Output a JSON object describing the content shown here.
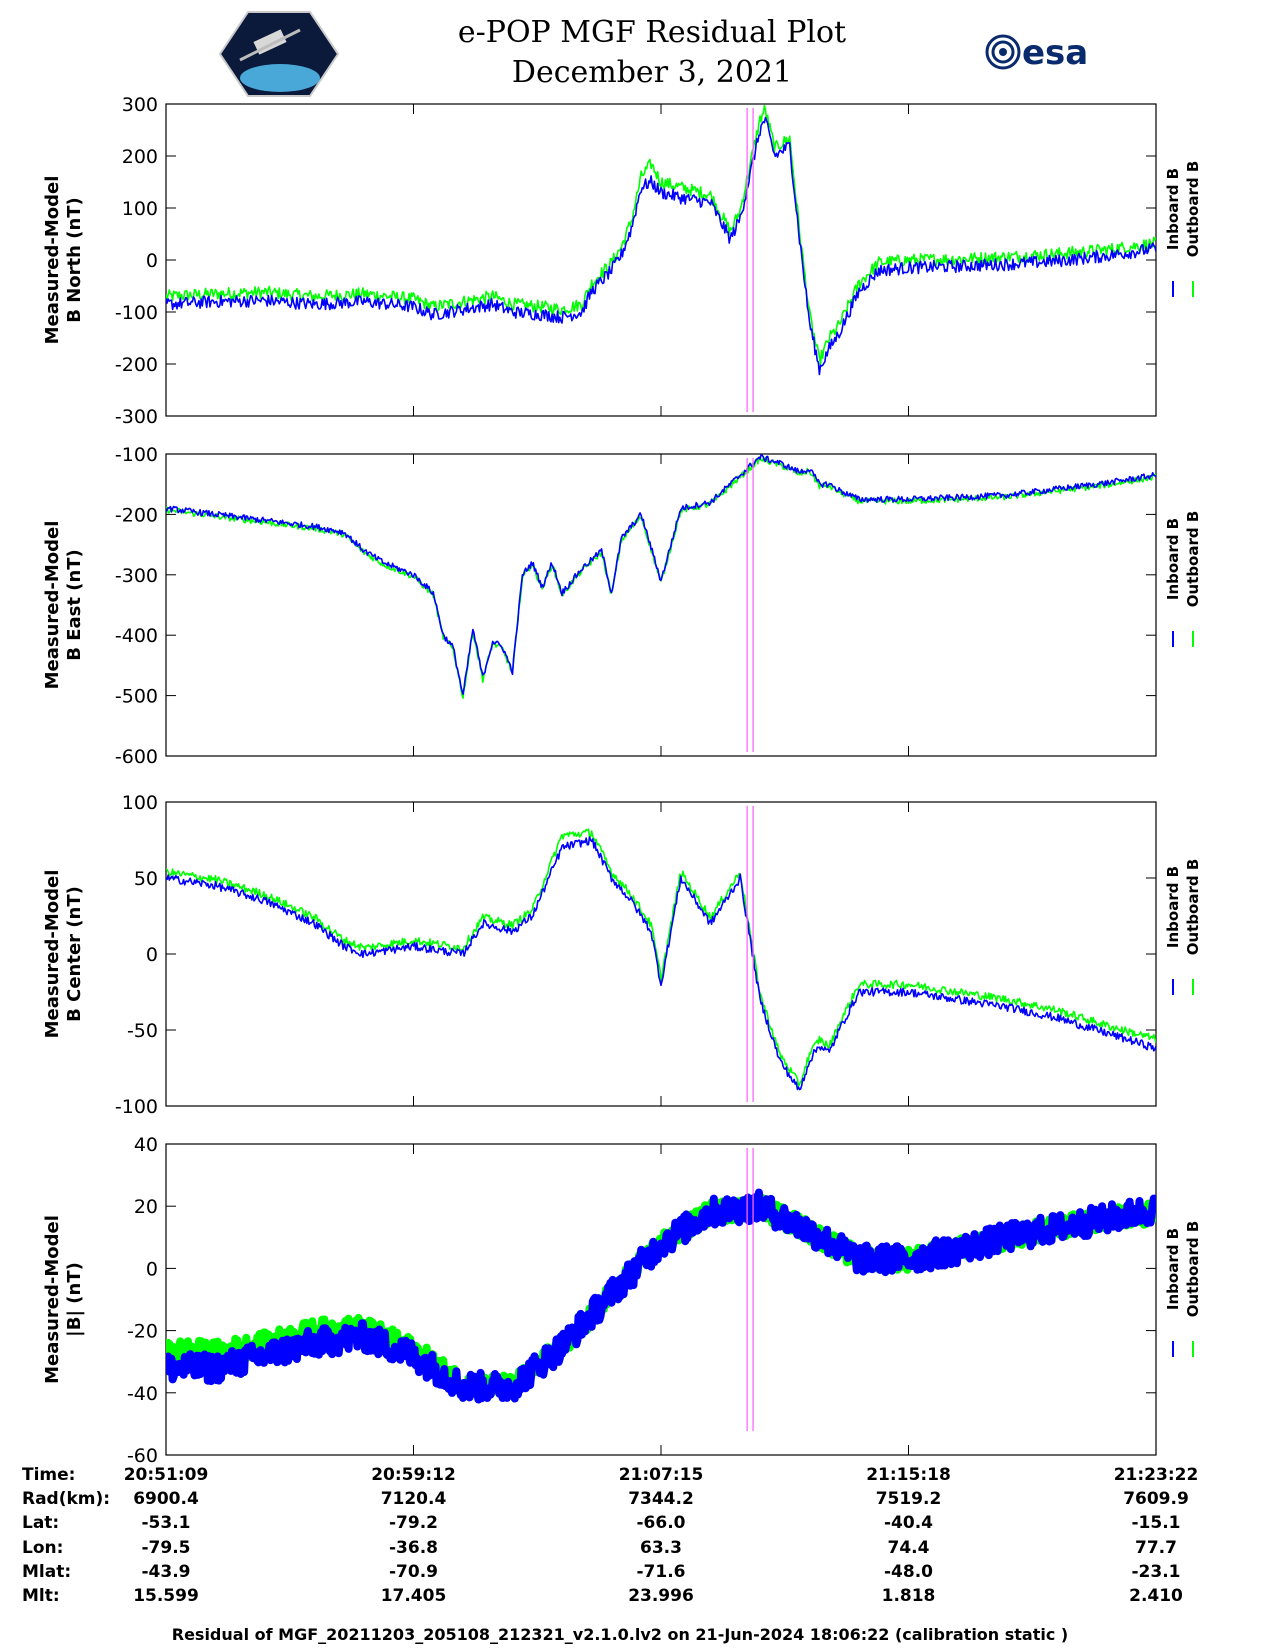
{
  "header": {
    "title_line1": "e-POP MGF Residual Plot",
    "title_line2": "December 3, 2021",
    "esa_logo_text": "esa"
  },
  "colors": {
    "inboard": "#0000ff",
    "outboard": "#00ff00",
    "marker": "#ff66ff"
  },
  "legend": {
    "inboard_label": "Inboard B",
    "outboard_label": "Outboard B"
  },
  "chart_data": [
    {
      "type": "line",
      "ylabel_line1": "Measured-Model",
      "ylabel_line2": "B North (nT)",
      "ylim": [
        -300,
        300
      ],
      "yticks": [
        "300",
        "200",
        "100",
        "0",
        "-100",
        "-200",
        "-300"
      ],
      "x": [
        0,
        5,
        10,
        15,
        20,
        25,
        27,
        30,
        33,
        35,
        38,
        40,
        42,
        43,
        44,
        45,
        46,
        47,
        48,
        49,
        50,
        52,
        55,
        57,
        58,
        60,
        60.5,
        61.5,
        63,
        64,
        65,
        66,
        67,
        68,
        70,
        72,
        75,
        80,
        85,
        90,
        95,
        100
      ],
      "series": [
        {
          "name": "Inboard B",
          "values": [
            -85,
            -80,
            -78,
            -85,
            -80,
            -90,
            -105,
            -95,
            -85,
            -100,
            -105,
            -110,
            -100,
            -60,
            -40,
            -20,
            10,
            60,
            140,
            150,
            130,
            120,
            110,
            40,
            80,
            250,
            270,
            200,
            220,
            40,
            -120,
            -210,
            -170,
            -140,
            -60,
            -20,
            -15,
            -12,
            -8,
            -2,
            8,
            22
          ]
        },
        {
          "name": "Outboard B",
          "values": [
            -70,
            -65,
            -62,
            -70,
            -65,
            -75,
            -90,
            -80,
            -70,
            -85,
            -90,
            -95,
            -85,
            -45,
            -25,
            -5,
            25,
            75,
            160,
            185,
            150,
            140,
            125,
            55,
            95,
            270,
            290,
            215,
            235,
            55,
            -105,
            -195,
            -150,
            -125,
            -45,
            -5,
            0,
            2,
            6,
            12,
            20,
            32
          ]
        }
      ]
    },
    {
      "type": "line",
      "ylabel_line1": "Measured-Model",
      "ylabel_line2": "B East (nT)",
      "ylim": [
        -600,
        -100
      ],
      "yticks": [
        "-100",
        "-200",
        "-300",
        "-400",
        "-500",
        "-600"
      ],
      "x": [
        0,
        5,
        10,
        15,
        18,
        20,
        22,
        25,
        27,
        28,
        29,
        30,
        31,
        32,
        33,
        34,
        35,
        36,
        37,
        38,
        39,
        40,
        42,
        44,
        45,
        46,
        48,
        50,
        52,
        55,
        57,
        60,
        62,
        64,
        65,
        66,
        67,
        68,
        70,
        75,
        80,
        85,
        90,
        95,
        100
      ],
      "series": [
        {
          "name": "Inboard B",
          "values": [
            -190,
            -200,
            -210,
            -220,
            -230,
            -260,
            -280,
            -300,
            -330,
            -400,
            -420,
            -500,
            -390,
            -470,
            -410,
            -420,
            -460,
            -300,
            -280,
            -320,
            -280,
            -330,
            -290,
            -260,
            -330,
            -240,
            -200,
            -310,
            -190,
            -180,
            -150,
            -105,
            -115,
            -130,
            -125,
            -150,
            -150,
            -160,
            -175,
            -175,
            -172,
            -168,
            -158,
            -148,
            -135
          ]
        },
        {
          "name": "Outboard B",
          "values": [
            -192,
            -203,
            -213,
            -223,
            -233,
            -263,
            -283,
            -303,
            -333,
            -403,
            -423,
            -503,
            -393,
            -473,
            -413,
            -423,
            -463,
            -303,
            -283,
            -323,
            -283,
            -333,
            -293,
            -263,
            -333,
            -243,
            -203,
            -313,
            -193,
            -183,
            -153,
            -108,
            -118,
            -133,
            -128,
            -153,
            -153,
            -163,
            -178,
            -178,
            -175,
            -171,
            -161,
            -151,
            -138
          ]
        }
      ]
    },
    {
      "type": "line",
      "ylabel_line1": "Measured-Model",
      "ylabel_line2": "B Center (nT)",
      "ylim": [
        -100,
        100
      ],
      "yticks": [
        "100",
        "50",
        "0",
        "-50",
        "-100"
      ],
      "x": [
        0,
        5,
        10,
        15,
        18,
        20,
        25,
        30,
        32,
        35,
        37,
        40,
        43,
        45,
        47,
        49,
        50,
        52,
        55,
        58,
        60,
        62,
        64,
        65,
        66,
        67,
        68,
        70,
        75,
        80,
        85,
        90,
        95,
        100
      ],
      "series": [
        {
          "name": "Inboard B",
          "values": [
            50,
            45,
            35,
            20,
            5,
            0,
            5,
            0,
            20,
            15,
            25,
            70,
            75,
            50,
            35,
            15,
            -20,
            50,
            20,
            50,
            -30,
            -70,
            -90,
            -70,
            -60,
            -65,
            -50,
            -25,
            -25,
            -30,
            -35,
            -42,
            -52,
            -62
          ]
        },
        {
          "name": "Outboard B",
          "values": [
            54,
            49,
            39,
            24,
            9,
            4,
            9,
            4,
            24,
            19,
            29,
            78,
            80,
            54,
            39,
            19,
            -16,
            54,
            24,
            54,
            -26,
            -66,
            -86,
            -66,
            -56,
            -61,
            -46,
            -20,
            -20,
            -25,
            -30,
            -37,
            -47,
            -56
          ]
        }
      ]
    },
    {
      "type": "line",
      "ylabel_line1": "Measured-Model",
      "ylabel_line2": "|B| (nT)",
      "ylim": [
        -60,
        40
      ],
      "yticks": [
        "40",
        "20",
        "0",
        "-20",
        "-40",
        "-60"
      ],
      "x": [
        0,
        5,
        10,
        15,
        20,
        25,
        30,
        35,
        40,
        45,
        50,
        55,
        60,
        65,
        70,
        75,
        80,
        85,
        90,
        95,
        100
      ],
      "series": [
        {
          "name": "Inboard B",
          "values": [
            -32,
            -32,
            -28,
            -24,
            -22,
            -28,
            -38,
            -38,
            -25,
            -8,
            8,
            18,
            20,
            12,
            3,
            3,
            6,
            10,
            13,
            16,
            19
          ]
        },
        {
          "name": "Outboard B",
          "values": [
            -26,
            -27,
            -24,
            -20,
            -19,
            -26,
            -37,
            -38,
            -25,
            -8,
            8,
            18,
            20,
            12,
            3,
            3,
            6,
            10,
            13,
            16,
            18
          ]
        }
      ]
    }
  ],
  "marker_x": [
    58.7,
    59.3
  ],
  "x_tick_positions": [
    0,
    25,
    50,
    75,
    100
  ],
  "info_table": {
    "row_labels": [
      "Time:",
      "Rad(km):",
      "Lat:",
      "Lon:",
      "Mlat:",
      "Mlt:"
    ],
    "columns": [
      [
        "20:51:09",
        "6900.4",
        "-53.1",
        "-79.5",
        "-43.9",
        "15.599"
      ],
      [
        "20:59:12",
        "7120.4",
        "-79.2",
        "-36.8",
        "-70.9",
        "17.405"
      ],
      [
        "21:07:15",
        "7344.2",
        "-66.0",
        "63.3",
        "-71.6",
        "23.996"
      ],
      [
        "21:15:18",
        "7519.2",
        "-40.4",
        "74.4",
        "-48.0",
        "1.818"
      ],
      [
        "21:23:22",
        "7609.9",
        "-15.1",
        "77.7",
        "-23.1",
        "2.410"
      ]
    ]
  },
  "footer": "Residual of MGF_20211203_205108_212321_v2.1.0.lv2 on 21-Jun-2024 18:06:22 (calibration static )"
}
